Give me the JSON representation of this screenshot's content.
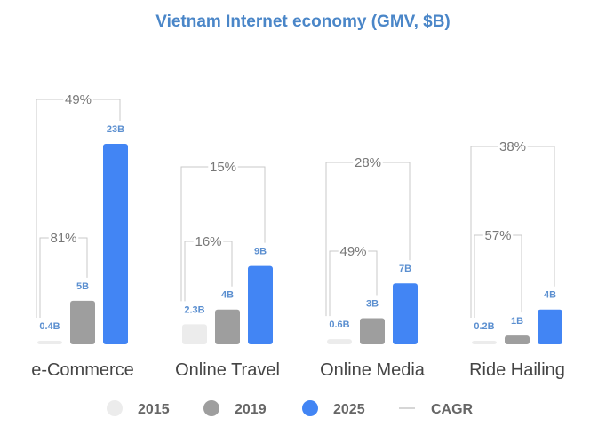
{
  "chart_data": {
    "type": "bar",
    "title": "Vietnam Internet economy (GMV, $B)",
    "categories": [
      "e-Commerce",
      "Online Travel",
      "Online Media",
      "Ride Hailing"
    ],
    "series": [
      {
        "name": "2015",
        "color": "#ececec",
        "values": [
          0.4,
          2.3,
          0.6,
          0.2
        ],
        "labels": [
          "0.4B",
          "2.3B",
          "0.6B",
          "0.2B"
        ]
      },
      {
        "name": "2019",
        "color": "#9e9e9e",
        "values": [
          5,
          4,
          3,
          1
        ],
        "labels": [
          "5B",
          "4B",
          "3B",
          "1B"
        ]
      },
      {
        "name": "2025",
        "color": "#4285f4",
        "values": [
          23,
          9,
          7,
          4
        ],
        "labels": [
          "23B",
          "9B",
          "7B",
          "4B"
        ]
      }
    ],
    "cagr": {
      "2015_2019": [
        "81%",
        "16%",
        "49%",
        "57%"
      ],
      "2015_2025": [
        "49%",
        "15%",
        "28%",
        "38%"
      ]
    },
    "legend": [
      "2015",
      "2019",
      "2025",
      "CAGR"
    ],
    "ylim": [
      0,
      23
    ]
  }
}
